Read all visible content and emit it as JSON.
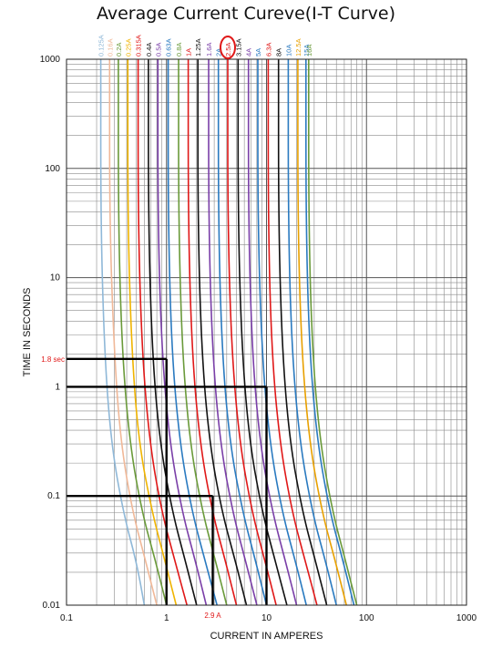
{
  "chart_data": {
    "type": "line",
    "title": "Average Current Cureve(I-T Curve)",
    "xlabel": "CURRENT IN AMPERES",
    "ylabel": "TIME IN SECONDS",
    "x_scale": "log",
    "y_scale": "log",
    "xlim": [
      0.1,
      1000
    ],
    "ylim": [
      0.01,
      1000
    ],
    "grid": true,
    "x_ticks": [
      {
        "value": 0.1,
        "label": "0.1"
      },
      {
        "value": 1,
        "label": "1"
      },
      {
        "value": 10,
        "label": "10"
      },
      {
        "value": 100,
        "label": "100"
      },
      {
        "value": 1000,
        "label": "1000"
      }
    ],
    "y_ticks": [
      {
        "value": 0.01,
        "label": "0.01"
      },
      {
        "value": 0.1,
        "label": "0.1"
      },
      {
        "value": 1,
        "label": "1"
      },
      {
        "value": 10,
        "label": "10"
      },
      {
        "value": 100,
        "label": "100"
      },
      {
        "value": 1000,
        "label": "1000"
      }
    ],
    "series": [
      {
        "name": "0.125A",
        "color": "#8fb8d8",
        "points": [
          [
            0.22,
            1000
          ],
          [
            0.22,
            30
          ],
          [
            0.24,
            2
          ],
          [
            0.28,
            0.3
          ],
          [
            0.37,
            0.07
          ],
          [
            0.5,
            0.025
          ],
          [
            0.6,
            0.01
          ]
        ]
      },
      {
        "name": "0.16A",
        "color": "#f0b898",
        "points": [
          [
            0.27,
            1000
          ],
          [
            0.27,
            30
          ],
          [
            0.3,
            2
          ],
          [
            0.35,
            0.3
          ],
          [
            0.46,
            0.07
          ],
          [
            0.62,
            0.025
          ],
          [
            0.8,
            0.01
          ]
        ]
      },
      {
        "name": "0.2A",
        "color": "#6a9a3a",
        "points": [
          [
            0.33,
            1000
          ],
          [
            0.33,
            30
          ],
          [
            0.36,
            2
          ],
          [
            0.43,
            0.3
          ],
          [
            0.57,
            0.07
          ],
          [
            0.78,
            0.025
          ],
          [
            1.0,
            0.01
          ]
        ]
      },
      {
        "name": "0.25A",
        "color": "#f0b400",
        "points": [
          [
            0.41,
            1000
          ],
          [
            0.41,
            30
          ],
          [
            0.45,
            2
          ],
          [
            0.53,
            0.3
          ],
          [
            0.72,
            0.07
          ],
          [
            0.97,
            0.025
          ],
          [
            1.25,
            0.01
          ]
        ]
      },
      {
        "name": "0.315A",
        "color": "#e01818",
        "points": [
          [
            0.52,
            1000
          ],
          [
            0.52,
            30
          ],
          [
            0.57,
            2
          ],
          [
            0.68,
            0.3
          ],
          [
            0.9,
            0.07
          ],
          [
            1.22,
            0.025
          ],
          [
            1.6,
            0.01
          ]
        ]
      },
      {
        "name": "0.4A",
        "color": "#111111",
        "points": [
          [
            0.66,
            1000
          ],
          [
            0.66,
            30
          ],
          [
            0.72,
            2
          ],
          [
            0.86,
            0.3
          ],
          [
            1.15,
            0.07
          ],
          [
            1.55,
            0.025
          ],
          [
            2.0,
            0.01
          ]
        ]
      },
      {
        "name": "0.5A",
        "color": "#7a3fa8",
        "points": [
          [
            0.82,
            1000
          ],
          [
            0.82,
            30
          ],
          [
            0.9,
            2
          ],
          [
            1.08,
            0.3
          ],
          [
            1.44,
            0.07
          ],
          [
            1.95,
            0.025
          ],
          [
            2.5,
            0.01
          ]
        ]
      },
      {
        "name": "0.63A",
        "color": "#2a7ac0",
        "points": [
          [
            1.04,
            1000
          ],
          [
            1.04,
            30
          ],
          [
            1.13,
            2
          ],
          [
            1.36,
            0.3
          ],
          [
            1.81,
            0.07
          ],
          [
            2.45,
            0.025
          ],
          [
            3.2,
            0.01
          ]
        ]
      },
      {
        "name": "0.8A",
        "color": "#6a9a3a",
        "points": [
          [
            1.32,
            1000
          ],
          [
            1.32,
            30
          ],
          [
            1.44,
            2
          ],
          [
            1.72,
            0.3
          ],
          [
            2.3,
            0.07
          ],
          [
            3.1,
            0.025
          ],
          [
            4.0,
            0.01
          ]
        ]
      },
      {
        "name": "1A",
        "color": "#e01818",
        "points": [
          [
            1.65,
            1000
          ],
          [
            1.65,
            30
          ],
          [
            1.8,
            2
          ],
          [
            2.16,
            0.3
          ],
          [
            2.88,
            0.07
          ],
          [
            3.9,
            0.025
          ],
          [
            5.0,
            0.01
          ]
        ]
      },
      {
        "name": "1.25A",
        "color": "#111111",
        "points": [
          [
            2.06,
            1000
          ],
          [
            2.06,
            30
          ],
          [
            2.25,
            2
          ],
          [
            2.7,
            0.3
          ],
          [
            3.6,
            0.07
          ],
          [
            4.9,
            0.025
          ],
          [
            6.3,
            0.01
          ]
        ]
      },
      {
        "name": "1.6A",
        "color": "#7a3fa8",
        "points": [
          [
            2.64,
            1000
          ],
          [
            2.64,
            30
          ],
          [
            2.88,
            2
          ],
          [
            3.45,
            0.3
          ],
          [
            4.6,
            0.07
          ],
          [
            6.2,
            0.025
          ],
          [
            8.0,
            0.01
          ]
        ]
      },
      {
        "name": "2A",
        "color": "#2a7ac0",
        "points": [
          [
            3.3,
            1000
          ],
          [
            3.3,
            30
          ],
          [
            3.6,
            2
          ],
          [
            4.3,
            0.3
          ],
          [
            5.8,
            0.07
          ],
          [
            7.8,
            0.025
          ],
          [
            10,
            0.01
          ]
        ]
      },
      {
        "name": "2.5A",
        "color": "#e01818",
        "points": [
          [
            4.1,
            1000
          ],
          [
            4.1,
            30
          ],
          [
            4.5,
            2
          ],
          [
            5.4,
            0.3
          ],
          [
            7.2,
            0.07
          ],
          [
            9.7,
            0.025
          ],
          [
            12.5,
            0.01
          ]
        ]
      },
      {
        "name": "3.15A",
        "color": "#111111",
        "points": [
          [
            5.2,
            1000
          ],
          [
            5.2,
            30
          ],
          [
            5.7,
            2
          ],
          [
            6.8,
            0.3
          ],
          [
            9.1,
            0.07
          ],
          [
            12.3,
            0.025
          ],
          [
            16,
            0.01
          ]
        ]
      },
      {
        "name": "4A",
        "color": "#7a3fa8",
        "points": [
          [
            6.6,
            1000
          ],
          [
            6.6,
            30
          ],
          [
            7.2,
            2
          ],
          [
            8.6,
            0.3
          ],
          [
            11.5,
            0.07
          ],
          [
            15.5,
            0.025
          ],
          [
            20,
            0.01
          ]
        ]
      },
      {
        "name": "5A",
        "color": "#2a7ac0",
        "points": [
          [
            8.2,
            1000
          ],
          [
            8.2,
            30
          ],
          [
            9.0,
            2
          ],
          [
            10.8,
            0.3
          ],
          [
            14.4,
            0.07
          ],
          [
            19.5,
            0.025
          ],
          [
            25,
            0.01
          ]
        ]
      },
      {
        "name": "6.3A",
        "color": "#e01818",
        "points": [
          [
            10.4,
            1000
          ],
          [
            10.4,
            30
          ],
          [
            11.3,
            2
          ],
          [
            13.6,
            0.3
          ],
          [
            18.1,
            0.07
          ],
          [
            24.5,
            0.025
          ],
          [
            32,
            0.01
          ]
        ]
      },
      {
        "name": "8A",
        "color": "#111111",
        "points": [
          [
            13.2,
            1000
          ],
          [
            13.2,
            30
          ],
          [
            14.4,
            2
          ],
          [
            17.2,
            0.3
          ],
          [
            23,
            0.07
          ],
          [
            31,
            0.025
          ],
          [
            40,
            0.01
          ]
        ]
      },
      {
        "name": "10A",
        "color": "#2a7ac0",
        "points": [
          [
            16.5,
            1000
          ],
          [
            16.5,
            30
          ],
          [
            18,
            2
          ],
          [
            21.6,
            0.3
          ],
          [
            28.8,
            0.07
          ],
          [
            39,
            0.025
          ],
          [
            50,
            0.01
          ]
        ]
      },
      {
        "name": "12.5A",
        "color": "#e8a000",
        "points": [
          [
            20.6,
            1000
          ],
          [
            20.6,
            30
          ],
          [
            22.5,
            2
          ],
          [
            27,
            0.3
          ],
          [
            36,
            0.07
          ],
          [
            49,
            0.025
          ],
          [
            63,
            0.01
          ]
        ]
      },
      {
        "name": "15A",
        "color": "#2a7ac0",
        "points": [
          [
            24.8,
            1000
          ],
          [
            24.8,
            30
          ],
          [
            27,
            2
          ],
          [
            32.4,
            0.3
          ],
          [
            43.2,
            0.07
          ],
          [
            58.5,
            0.025
          ],
          [
            75,
            0.01
          ]
        ]
      },
      {
        "name": "16A",
        "color": "#6a9a3a",
        "points": [
          [
            26.4,
            1000
          ],
          [
            26.4,
            30
          ],
          [
            28.8,
            2
          ],
          [
            34.5,
            0.3
          ],
          [
            46,
            0.07
          ],
          [
            62,
            0.025
          ],
          [
            80,
            0.01
          ]
        ]
      }
    ],
    "annotations": [
      {
        "text": "1.8 sec",
        "color": "#e01818",
        "lines": [
          [
            [
              0.1,
              1.8
            ],
            [
              1.0,
              1.8
            ]
          ],
          [
            [
              1.0,
              1.8
            ],
            [
              1.0,
              0.01
            ]
          ]
        ]
      },
      {
        "text": "",
        "color": "#000000",
        "lines": [
          [
            [
              0.1,
              1
            ],
            [
              10,
              1
            ]
          ],
          [
            [
              10,
              1
            ],
            [
              10,
              0.01
            ]
          ]
        ]
      },
      {
        "text": "2.9 A",
        "color": "#e01818",
        "lines": [
          [
            [
              0.1,
              0.1
            ],
            [
              2.9,
              0.1
            ]
          ],
          [
            [
              2.9,
              0.1
            ],
            [
              2.9,
              0.01
            ]
          ]
        ]
      }
    ],
    "highlight": {
      "label": "2.5A",
      "color": "#e01818"
    }
  }
}
